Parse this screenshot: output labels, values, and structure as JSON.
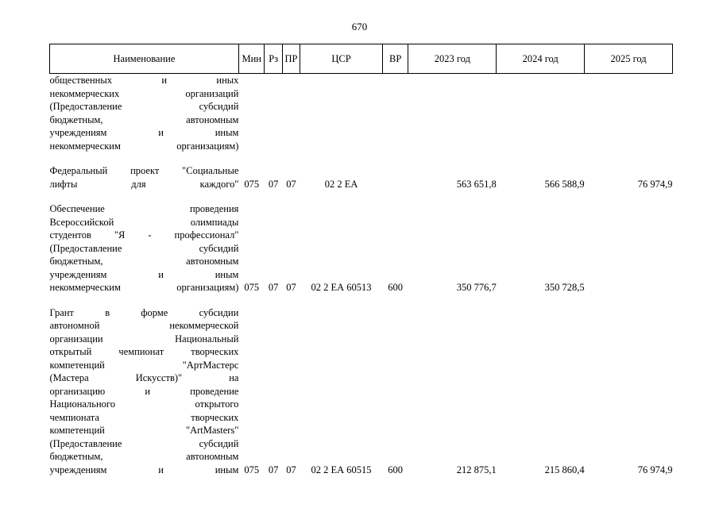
{
  "page_number": "670",
  "columns": {
    "name": "Наименование",
    "min": "Мин",
    "rz": "Рз",
    "pr": "ПР",
    "csr": "ЦСР",
    "vr": "ВР",
    "y2023": "2023 год",
    "y2024": "2024 год",
    "y2025": "2025 год"
  },
  "rows": [
    {
      "name_lines": [
        "общественных и иных",
        "некоммерческих организаций",
        "(Предоставление субсидий",
        "бюджетным, автономным",
        "учреждениям и иным"
      ],
      "name_last": "некоммерческим организациям)",
      "min": "",
      "rz": "",
      "pr": "",
      "csr": "",
      "vr": "",
      "y2023": "",
      "y2024": "",
      "y2025": ""
    },
    {
      "name_lines": [
        "Федеральный проект \"Социальные"
      ],
      "name_last": "лифты для каждого\"",
      "min": "075",
      "rz": "07",
      "pr": "07",
      "csr": "02 2 ЕА",
      "vr": "",
      "y2023": "563 651,8",
      "y2024": "566 588,9",
      "y2025": "76 974,9"
    },
    {
      "name_lines": [
        "Обеспечение проведения",
        "Всероссийской олимпиады",
        "студентов \"Я - профессионал\"",
        "(Предоставление субсидий",
        "бюджетным, автономным",
        "учреждениям и иным"
      ],
      "name_last": "некоммерческим организациям)",
      "min": "075",
      "rz": "07",
      "pr": "07",
      "csr": "02 2 ЕА 60513",
      "vr": "600",
      "y2023": "350 776,7",
      "y2024": "350 728,5",
      "y2025": ""
    },
    {
      "name_lines": [
        "Грант в форме субсидии",
        "автономной некоммерческой",
        "организации Национальный",
        "открытый чемпионат творческих",
        "компетенций \"АртМастерс",
        "(Мастера Искусств)\" на",
        "организацию и проведение",
        "Национального открытого",
        "чемпионата творческих",
        "компетенций \"ArtMasters\"",
        "(Предоставление субсидий",
        "бюджетным, автономным"
      ],
      "name_last": "учреждениям и иным",
      "min": "075",
      "rz": "07",
      "pr": "07",
      "csr": "02 2 ЕА 60515",
      "vr": "600",
      "y2023": "212 875,1",
      "y2024": "215 860,4",
      "y2025": "76 974,9"
    }
  ]
}
